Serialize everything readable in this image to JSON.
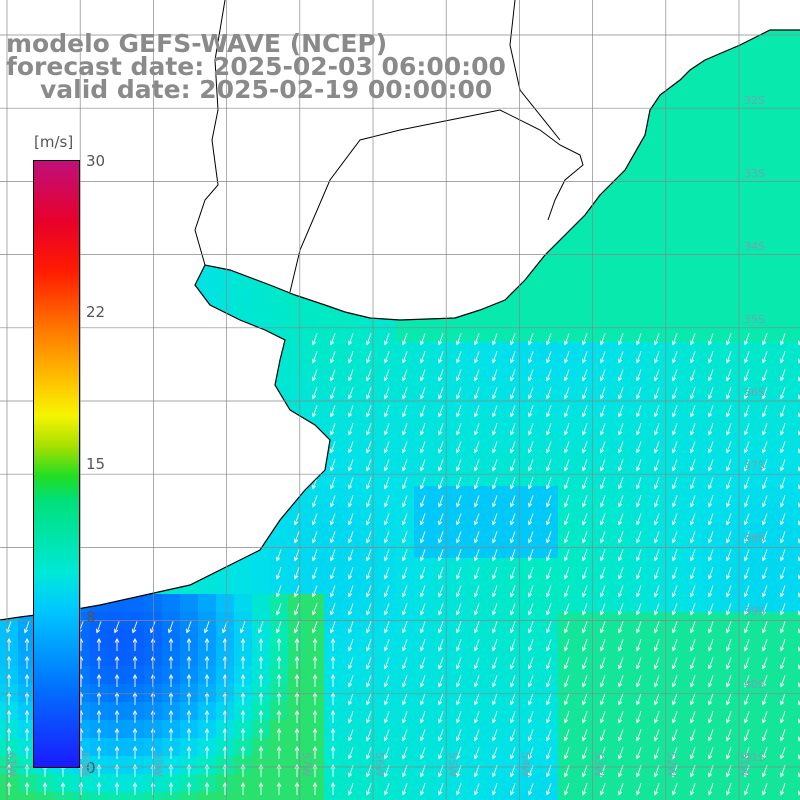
{
  "title": {
    "model": "modelo GEFS-WAVE (NCEP)",
    "forecast": "forecast date: 2025-02-03 06:00:00",
    "valid": "valid date: 2025-02-19 00:00:00"
  },
  "colorbar": {
    "unit": "[m/s]",
    "ticks": [
      "30",
      "22",
      "15",
      "8",
      "0"
    ]
  },
  "grid_labels": {
    "latitudes": [
      "32S",
      "33S",
      "34S",
      "35S",
      "36S",
      "37S",
      "38S",
      "39S",
      "40S",
      "41S"
    ],
    "longitudes": [
      "61W",
      "60W",
      "59W",
      "57W",
      "56W",
      "55W",
      "54W",
      "53W",
      "52W",
      "51W"
    ]
  },
  "colors": {
    "land": "#ffffff",
    "coast": "#000000",
    "grid": "#888888",
    "arrow": "#ffffff",
    "title": "#8a8a8a"
  }
}
